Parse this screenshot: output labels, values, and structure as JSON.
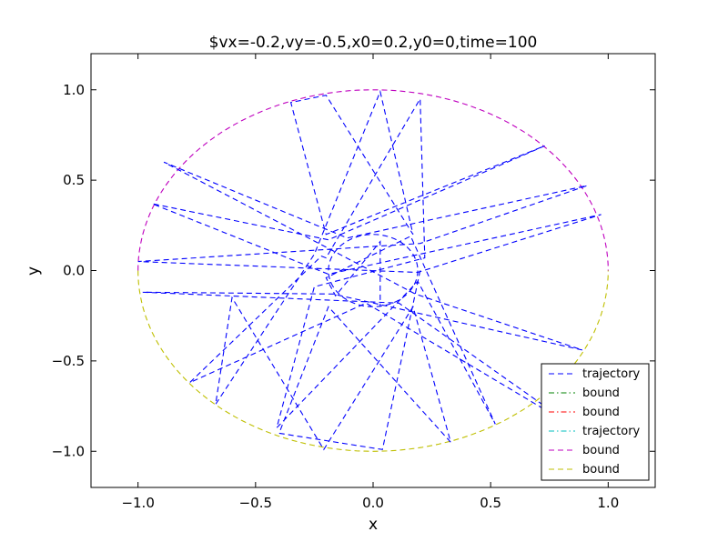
{
  "chart_data": {
    "type": "line",
    "title": "$vx=-0.2,vy=-0.5,x0=0.2,y0=0,time=100",
    "xlabel": "x",
    "ylabel": "y",
    "xlim": [
      -1.2,
      1.2
    ],
    "ylim": [
      -1.2,
      1.2
    ],
    "xticks": [
      -1.0,
      -0.5,
      0.0,
      0.5,
      1.0
    ],
    "yticks": [
      -1.0,
      -0.5,
      0.0,
      0.5,
      1.0
    ],
    "xtick_labels": [
      "−1.0",
      "−0.5",
      "0.0",
      "0.5",
      "1.0"
    ],
    "ytick_labels": [
      "−1.0",
      "−0.5",
      "0.0",
      "0.5",
      "1.0"
    ],
    "grid": false,
    "legend_position": "bottom-right",
    "series": [
      {
        "name": "trajectory",
        "color": "#0000ff",
        "style": "dashed",
        "x": [
          0.2,
          0.04,
          -0.4,
          -0.19,
          0.33,
          0.17,
          -0.21,
          -0.6,
          -0.67,
          -0.25,
          0.03,
          0.17,
          -0.2,
          -0.35,
          -0.2,
          0.73,
          -0.19,
          -0.94,
          -0.19,
          0.97,
          0.19,
          -1.0,
          0.2,
          0.91,
          -0.11,
          -0.89,
          0.18,
          0.89,
          -0.17,
          -0.98,
          0.11,
          0.86,
          -0.03,
          -0.78,
          -0.22,
          -0.2,
          0.2,
          0.22,
          -0.25,
          -0.41,
          0.19,
          0.52,
          0.16,
          -0.2,
          -0.16,
          0.03,
          0.03
        ],
        "y": [
          0.0,
          -0.99,
          -0.9,
          -0.2,
          -0.95,
          -0.2,
          -0.99,
          -0.15,
          -0.74,
          0.09,
          0.99,
          0.2,
          0.97,
          0.93,
          0.2,
          0.69,
          0.17,
          0.37,
          -0.02,
          0.31,
          -0.01,
          0.05,
          0.15,
          0.47,
          0.18,
          0.6,
          -0.13,
          -0.44,
          -0.13,
          -0.12,
          -0.18,
          -0.87,
          -0.18,
          -0.62,
          0.08,
          0.07,
          0.95,
          0.07,
          -0.09,
          -0.87,
          -0.06,
          -0.85,
          0.19,
          -0.04,
          -0.14,
          0.16,
          -0.2
        ]
      },
      {
        "name": "bound",
        "color": "#008000",
        "style": "dashdot",
        "x": [],
        "y": []
      },
      {
        "name": "bound",
        "color": "#ff0000",
        "style": "dashdot",
        "x": [],
        "y": []
      },
      {
        "name": "trajectory",
        "color": "#00bfbf",
        "style": "dashdot",
        "x": [],
        "y": []
      },
      {
        "name": "bound",
        "color": "#bf00bf",
        "style": "dashed",
        "curve": "outer circle, upper half",
        "radius": 1.0
      },
      {
        "name": "bound",
        "color": "#bfbf00",
        "style": "dashed",
        "curve": "outer circle, lower half",
        "radius": 1.0
      }
    ],
    "inner_boundary": {
      "shape": "ellipse",
      "radius_x": 0.19,
      "radius_y": 0.2,
      "color": "#0000ff"
    }
  }
}
